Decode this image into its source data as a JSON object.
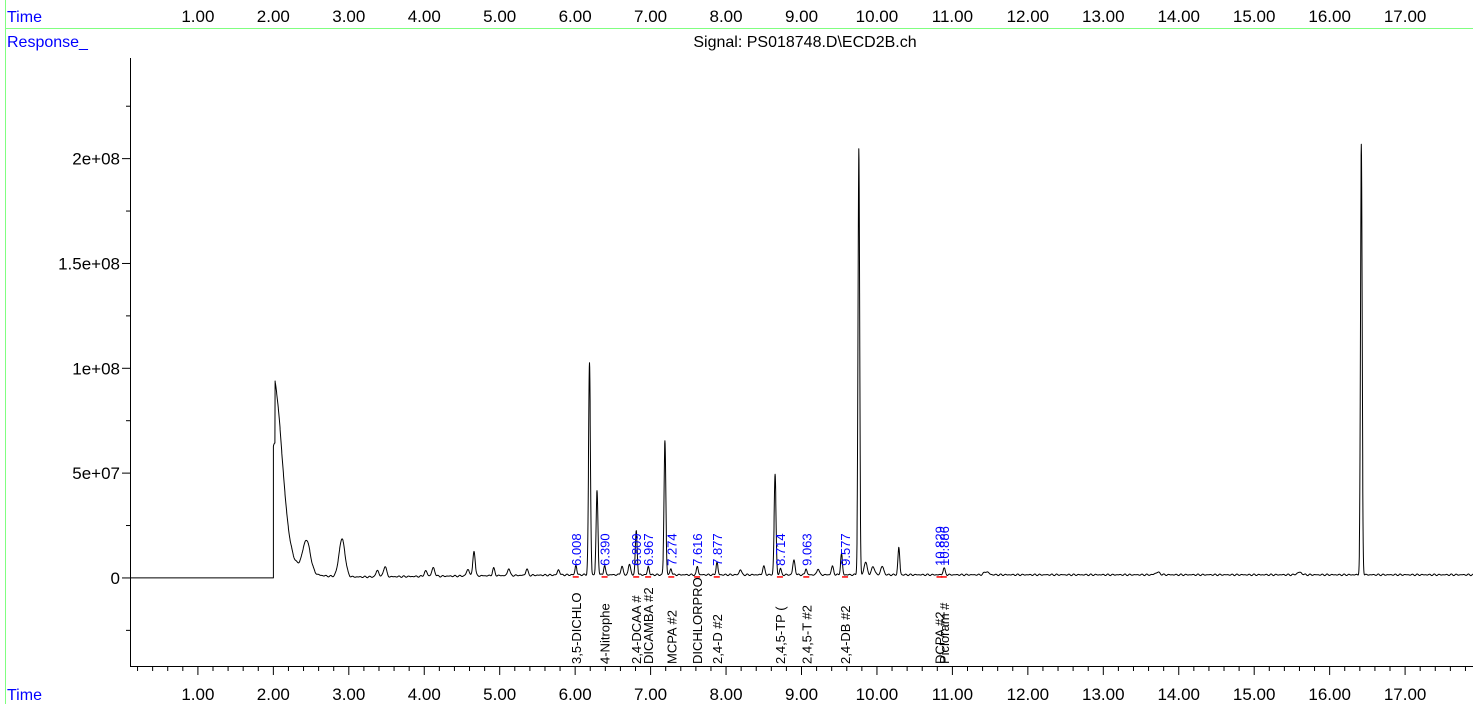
{
  "header": {
    "time_label": "Time",
    "response_label": "Response_",
    "signal_title": "Signal: PS018748.D\\ECD2B.ch"
  },
  "footer": {
    "time_label": "Time"
  },
  "colors": {
    "axis_text": "#0000ff",
    "trace": "#000000",
    "rt_label": "#0000ff",
    "compound_label": "#000000",
    "baseline_marker": "#ff0000",
    "header_rule": "#80ff80"
  },
  "chart_data": {
    "type": "line",
    "title": "Signal: PS018748.D\\ECD2B.ch",
    "xlabel": "Time",
    "ylabel": "Response_",
    "xlim": [
      0.1,
      17.9
    ],
    "ylim": [
      -42000000,
      248000000
    ],
    "x_ticks": [
      1,
      2,
      3,
      4,
      5,
      6,
      7,
      8,
      9,
      10,
      11,
      12,
      13,
      14,
      15,
      16,
      17
    ],
    "x_tick_labels": [
      "1.00",
      "2.00",
      "3.00",
      "4.00",
      "5.00",
      "6.00",
      "7.00",
      "8.00",
      "9.00",
      "10.00",
      "11.00",
      "12.00",
      "13.00",
      "14.00",
      "15.00",
      "16.00",
      "17.00"
    ],
    "y_ticks": [
      0,
      50000000,
      100000000,
      150000000,
      200000000
    ],
    "y_tick_labels": [
      "0",
      "5e+07",
      "1e+08",
      "1.5e+08",
      "2e+08"
    ],
    "grid": false,
    "baseline_start": 2.0,
    "peaks": [
      {
        "rt": 2.02,
        "height": 64000000,
        "width": 0.1,
        "tail": 30000000
      },
      {
        "rt": 2.44,
        "height": 15000000,
        "width": 0.05
      },
      {
        "rt": 2.91,
        "height": 18000000,
        "width": 0.04
      },
      {
        "rt": 3.38,
        "height": 3000000,
        "width": 0.02
      },
      {
        "rt": 3.48,
        "height": 5000000,
        "width": 0.02
      },
      {
        "rt": 4.02,
        "height": 2500000,
        "width": 0.02
      },
      {
        "rt": 4.12,
        "height": 4000000,
        "width": 0.02
      },
      {
        "rt": 4.58,
        "height": 3000000,
        "width": 0.02
      },
      {
        "rt": 4.66,
        "height": 12000000,
        "width": 0.015
      },
      {
        "rt": 4.92,
        "height": 3500000,
        "width": 0.015
      },
      {
        "rt": 5.12,
        "height": 3500000,
        "width": 0.015
      },
      {
        "rt": 5.36,
        "height": 3000000,
        "width": 0.015
      },
      {
        "rt": 5.78,
        "height": 2500000,
        "width": 0.015
      },
      {
        "rt": 6.01,
        "height": 4500000,
        "width": 0.012
      },
      {
        "rt": 6.19,
        "height": 101000000,
        "width": 0.012
      },
      {
        "rt": 6.29,
        "height": 40000000,
        "width": 0.012
      },
      {
        "rt": 6.39,
        "height": 4500000,
        "width": 0.012
      },
      {
        "rt": 6.62,
        "height": 4000000,
        "width": 0.015
      },
      {
        "rt": 6.72,
        "height": 5000000,
        "width": 0.015
      },
      {
        "rt": 6.81,
        "height": 21000000,
        "width": 0.012
      },
      {
        "rt": 6.97,
        "height": 4000000,
        "width": 0.012
      },
      {
        "rt": 7.19,
        "height": 64000000,
        "width": 0.012
      },
      {
        "rt": 7.27,
        "height": 3000000,
        "width": 0.012
      },
      {
        "rt": 7.62,
        "height": 4000000,
        "width": 0.012
      },
      {
        "rt": 7.88,
        "height": 6000000,
        "width": 0.012
      },
      {
        "rt": 8.19,
        "height": 2500000,
        "width": 0.015
      },
      {
        "rt": 8.5,
        "height": 4000000,
        "width": 0.015
      },
      {
        "rt": 8.65,
        "height": 48000000,
        "width": 0.012
      },
      {
        "rt": 8.72,
        "height": 3000000,
        "width": 0.012
      },
      {
        "rt": 8.9,
        "height": 7000000,
        "width": 0.015
      },
      {
        "rt": 9.06,
        "height": 3000000,
        "width": 0.012
      },
      {
        "rt": 9.22,
        "height": 3000000,
        "width": 0.015
      },
      {
        "rt": 9.41,
        "height": 4000000,
        "width": 0.015
      },
      {
        "rt": 9.53,
        "height": 10000000,
        "width": 0.012
      },
      {
        "rt": 9.76,
        "height": 203000000,
        "width": 0.011
      },
      {
        "rt": 9.85,
        "height": 6000000,
        "width": 0.02
      },
      {
        "rt": 9.95,
        "height": 4000000,
        "width": 0.02
      },
      {
        "rt": 10.07,
        "height": 4000000,
        "width": 0.02
      },
      {
        "rt": 10.29,
        "height": 13000000,
        "width": 0.012
      },
      {
        "rt": 10.89,
        "height": 3000000,
        "width": 0.015
      },
      {
        "rt": 11.45,
        "height": 1500000,
        "width": 0.03
      },
      {
        "rt": 13.72,
        "height": 1200000,
        "width": 0.03
      },
      {
        "rt": 15.6,
        "height": 1200000,
        "width": 0.03
      },
      {
        "rt": 16.42,
        "height": 205000000,
        "width": 0.011
      }
    ],
    "annotations": [
      {
        "rt": 6.008,
        "label": "6.008",
        "compound": "3,5-DICHLO"
      },
      {
        "rt": 6.39,
        "label": "6.390",
        "compound": "4-Nitrophe"
      },
      {
        "rt": 6.809,
        "label": "6.809",
        "compound": "2,4-DCAA #"
      },
      {
        "rt": 6.967,
        "label": "6.967",
        "compound": "DICAMBA #2"
      },
      {
        "rt": 7.274,
        "label": "7.274",
        "compound": "MCPA #2"
      },
      {
        "rt": 7.616,
        "label": "7.616",
        "compound": "DICHLORPRO"
      },
      {
        "rt": 7.877,
        "label": "7.877",
        "compound": "2,4-D #2"
      },
      {
        "rt": 8.714,
        "label": "8.714",
        "compound": "2,4,5-TP ("
      },
      {
        "rt": 9.063,
        "label": "9.063",
        "compound": "2,4,5-T #2"
      },
      {
        "rt": 9.577,
        "label": "9.577",
        "compound": "2,4-DB #2"
      },
      {
        "rt": 10.829,
        "label": "10.829",
        "compound": "DCPA #2"
      },
      {
        "rt": 10.886,
        "label": "10.886",
        "compound": "Picloram #"
      }
    ]
  }
}
